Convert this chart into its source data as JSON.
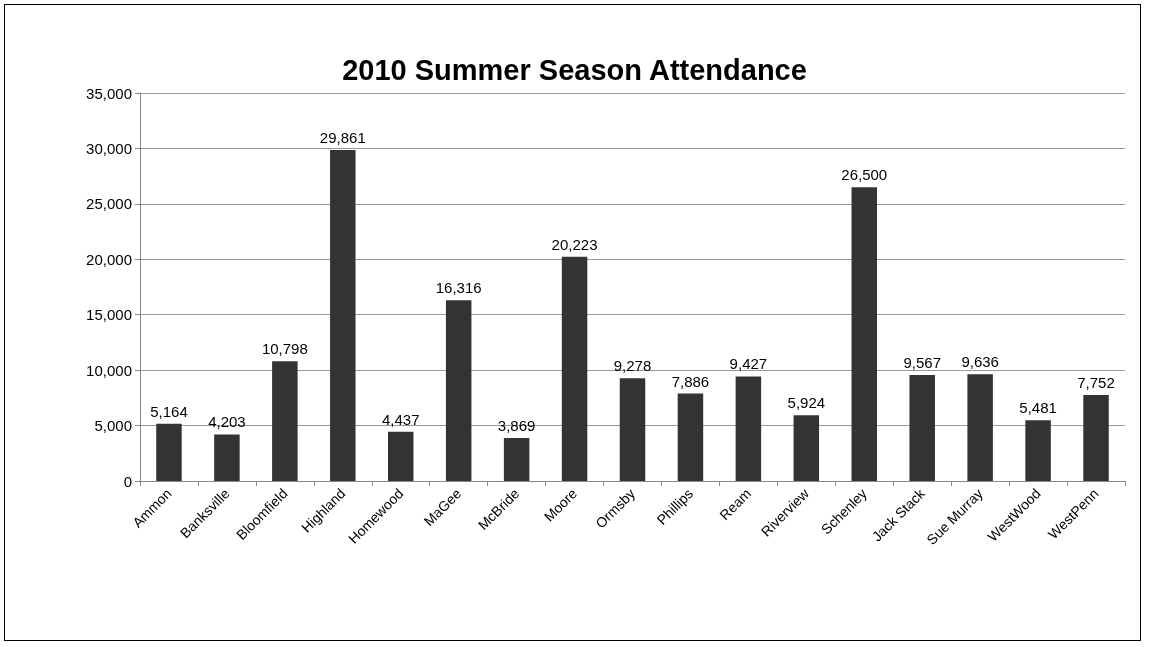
{
  "chart_data": {
    "type": "bar",
    "title": "2010 Summer Season Attendance",
    "categories": [
      "Ammon",
      "Banksville",
      "Bloomfield",
      "Highland",
      "Homewood",
      "MaGee",
      "McBride",
      "Moore",
      "Ormsby",
      "Phillips",
      "Ream",
      "Riverview",
      "Schenley",
      "Jack Stack",
      "Sue Murray",
      "WestWood",
      "WestPenn"
    ],
    "values": [
      5164,
      4203,
      10798,
      29861,
      4437,
      16316,
      3869,
      20223,
      9278,
      7886,
      9427,
      5924,
      26500,
      9567,
      9636,
      5481,
      7752
    ],
    "value_labels": [
      "5,164",
      "4,203",
      "10,798",
      "29,861",
      "4,437",
      "16,316",
      "3,869",
      "20,223",
      "9,278",
      "7,886",
      "9,427",
      "5,924",
      "26,500",
      "9,567",
      "9,636",
      "5,481",
      "7,752"
    ],
    "color": "#333333",
    "ylim": [
      0,
      35000
    ],
    "yticks": [
      0,
      {
        "value": 5000,
        "label": "5,000"
      },
      {
        "value": 10000,
        "label": "10,000"
      },
      {
        "value": 15000,
        "label": "15,000"
      },
      {
        "value": 20000,
        "label": "20,000"
      },
      {
        "value": 25000,
        "label": "25,000"
      },
      {
        "value": 30000,
        "label": "30,000"
      },
      {
        "value": 35000,
        "label": "35,000"
      }
    ],
    "grid": "y"
  }
}
